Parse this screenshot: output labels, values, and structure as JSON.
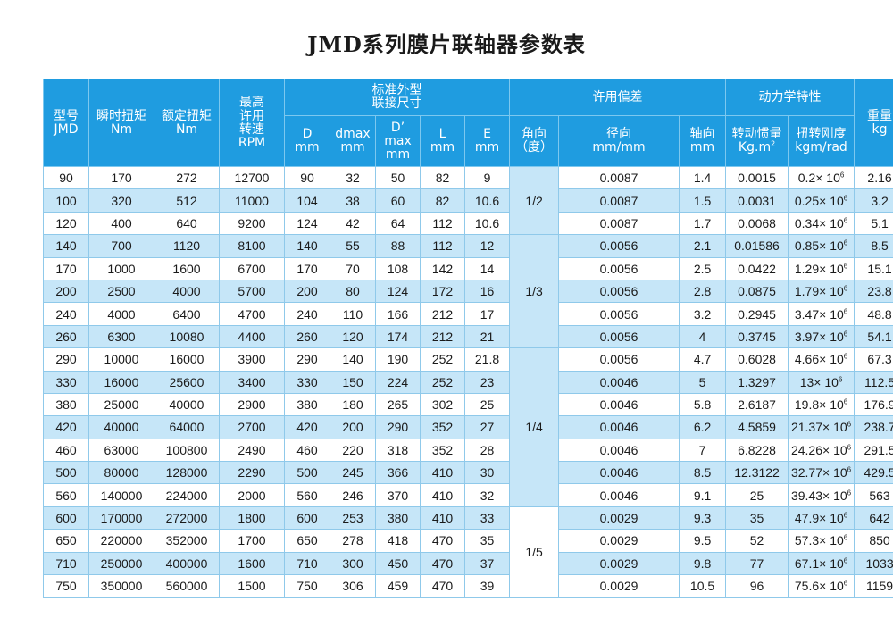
{
  "title_latin": "JMD",
  "title_cn": "系列膜片联轴器参数表",
  "headers": {
    "model": [
      "型号",
      "JMD"
    ],
    "inst_torque": [
      "瞬时扭矩",
      "Nm"
    ],
    "rated_torque": [
      "额定扭矩",
      "Nm"
    ],
    "max_speed": [
      "最高",
      "许用",
      "转速",
      "RPM"
    ],
    "dims_group": [
      "标准外型",
      "联接尺寸"
    ],
    "D": [
      "D",
      "mm"
    ],
    "dmax": [
      "dmax",
      "mm"
    ],
    "Dp": [
      "D’",
      "max",
      "mm"
    ],
    "L": [
      "L",
      "mm"
    ],
    "E": [
      "E",
      "mm"
    ],
    "deviation_group": "许用偏差",
    "angular": [
      "角向",
      "（度）"
    ],
    "radial": [
      "径向",
      "mm/mm"
    ],
    "axial": [
      "轴向",
      "mm"
    ],
    "dynamics_group": "动力学特性",
    "inertia": [
      "转动惯量",
      "Kg.m",
      "2"
    ],
    "stiffness": [
      "扭转刚度",
      "kgm/rad"
    ],
    "weight": [
      "重量",
      "kg"
    ]
  },
  "groups": [
    {
      "angle": "1/2",
      "rows": [
        {
          "model": "90",
          "inst": "170",
          "rated": "272",
          "speed": "12700",
          "D": "90",
          "dmax": "32",
          "Dp": "50",
          "L": "82",
          "E": "9",
          "radial": "0.0087",
          "axial": "1.4",
          "inertia": "0.0015",
          "stiff": "0.2",
          "weight": "2.16"
        },
        {
          "model": "100",
          "inst": "320",
          "rated": "512",
          "speed": "11000",
          "D": "104",
          "dmax": "38",
          "Dp": "60",
          "L": "82",
          "E": "10.6",
          "radial": "0.0087",
          "axial": "1.5",
          "inertia": "0.0031",
          "stiff": "0.25",
          "weight": "3.2"
        },
        {
          "model": "120",
          "inst": "400",
          "rated": "640",
          "speed": "9200",
          "D": "124",
          "dmax": "42",
          "Dp": "64",
          "L": "112",
          "E": "10.6",
          "radial": "0.0087",
          "axial": "1.7",
          "inertia": "0.0068",
          "stiff": "0.34",
          "weight": "5.1"
        }
      ]
    },
    {
      "angle": "1/3",
      "rows": [
        {
          "model": "140",
          "inst": "700",
          "rated": "1120",
          "speed": "8100",
          "D": "140",
          "dmax": "55",
          "Dp": "88",
          "L": "112",
          "E": "12",
          "radial": "0.0056",
          "axial": "2.1",
          "inertia": "0.01586",
          "stiff": "0.85",
          "weight": "8.5"
        },
        {
          "model": "170",
          "inst": "1000",
          "rated": "1600",
          "speed": "6700",
          "D": "170",
          "dmax": "70",
          "Dp": "108",
          "L": "142",
          "E": "14",
          "radial": "0.0056",
          "axial": "2.5",
          "inertia": "0.0422",
          "stiff": "1.29",
          "weight": "15.1"
        },
        {
          "model": "200",
          "inst": "2500",
          "rated": "4000",
          "speed": "5700",
          "D": "200",
          "dmax": "80",
          "Dp": "124",
          "L": "172",
          "E": "16",
          "radial": "0.0056",
          "axial": "2.8",
          "inertia": "0.0875",
          "stiff": "1.79",
          "weight": "23.8"
        },
        {
          "model": "240",
          "inst": "4000",
          "rated": "6400",
          "speed": "4700",
          "D": "240",
          "dmax": "110",
          "Dp": "166",
          "L": "212",
          "E": "17",
          "radial": "0.0056",
          "axial": "3.2",
          "inertia": "0.2945",
          "stiff": "3.47",
          "weight": "48.8"
        },
        {
          "model": "260",
          "inst": "6300",
          "rated": "10080",
          "speed": "4400",
          "D": "260",
          "dmax": "120",
          "Dp": "174",
          "L": "212",
          "E": "21",
          "radial": "0.0056",
          "axial": "4",
          "inertia": "0.3745",
          "stiff": "3.97",
          "weight": "54.1"
        }
      ]
    },
    {
      "angle": "1/4",
      "rows": [
        {
          "model": "290",
          "inst": "10000",
          "rated": "16000",
          "speed": "3900",
          "D": "290",
          "dmax": "140",
          "Dp": "190",
          "L": "252",
          "E": "21.8",
          "radial": "0.0056",
          "axial": "4.7",
          "inertia": "0.6028",
          "stiff": "4.66",
          "weight": "67.3"
        },
        {
          "model": "330",
          "inst": "16000",
          "rated": "25600",
          "speed": "3400",
          "D": "330",
          "dmax": "150",
          "Dp": "224",
          "L": "252",
          "E": "23",
          "radial": "0.0046",
          "axial": "5",
          "inertia": "1.3297",
          "stiff": "13",
          "weight": "112.5"
        },
        {
          "model": "380",
          "inst": "25000",
          "rated": "40000",
          "speed": "2900",
          "D": "380",
          "dmax": "180",
          "Dp": "265",
          "L": "302",
          "E": "25",
          "radial": "0.0046",
          "axial": "5.8",
          "inertia": "2.6187",
          "stiff": "19.8",
          "weight": "176.9"
        },
        {
          "model": "420",
          "inst": "40000",
          "rated": "64000",
          "speed": "2700",
          "D": "420",
          "dmax": "200",
          "Dp": "290",
          "L": "352",
          "E": "27",
          "radial": "0.0046",
          "axial": "6.2",
          "inertia": "4.5859",
          "stiff": "21.37",
          "weight": "238.7"
        },
        {
          "model": "460",
          "inst": "63000",
          "rated": "100800",
          "speed": "2490",
          "D": "460",
          "dmax": "220",
          "Dp": "318",
          "L": "352",
          "E": "28",
          "radial": "0.0046",
          "axial": "7",
          "inertia": "6.8228",
          "stiff": "24.26",
          "weight": "291.5"
        },
        {
          "model": "500",
          "inst": "80000",
          "rated": "128000",
          "speed": "2290",
          "D": "500",
          "dmax": "245",
          "Dp": "366",
          "L": "410",
          "E": "30",
          "radial": "0.0046",
          "axial": "8.5",
          "inertia": "12.3122",
          "stiff": "32.77",
          "weight": "429.5"
        },
        {
          "model": "560",
          "inst": "140000",
          "rated": "224000",
          "speed": "2000",
          "D": "560",
          "dmax": "246",
          "Dp": "370",
          "L": "410",
          "E": "32",
          "radial": "0.0046",
          "axial": "9.1",
          "inertia": "25",
          "stiff": "39.43",
          "weight": "563"
        }
      ]
    },
    {
      "angle": "1/5",
      "rows": [
        {
          "model": "600",
          "inst": "170000",
          "rated": "272000",
          "speed": "1800",
          "D": "600",
          "dmax": "253",
          "Dp": "380",
          "L": "410",
          "E": "33",
          "radial": "0.0029",
          "axial": "9.3",
          "inertia": "35",
          "stiff": "47.9",
          "weight": "642"
        },
        {
          "model": "650",
          "inst": "220000",
          "rated": "352000",
          "speed": "1700",
          "D": "650",
          "dmax": "278",
          "Dp": "418",
          "L": "470",
          "E": "35",
          "radial": "0.0029",
          "axial": "9.5",
          "inertia": "52",
          "stiff": "57.3",
          "weight": "850"
        },
        {
          "model": "710",
          "inst": "250000",
          "rated": "400000",
          "speed": "1600",
          "D": "710",
          "dmax": "300",
          "Dp": "450",
          "L": "470",
          "E": "37",
          "radial": "0.0029",
          "axial": "9.8",
          "inertia": "77",
          "stiff": "67.1",
          "weight": "1033"
        },
        {
          "model": "750",
          "inst": "350000",
          "rated": "560000",
          "speed": "1500",
          "D": "750",
          "dmax": "306",
          "Dp": "459",
          "L": "470",
          "E": "39",
          "radial": "0.0029",
          "axial": "10.5",
          "inertia": "96",
          "stiff": "75.6",
          "weight": "1159"
        }
      ]
    }
  ],
  "stiffness_multiplier": "× 10",
  "stiffness_exponent": "6"
}
